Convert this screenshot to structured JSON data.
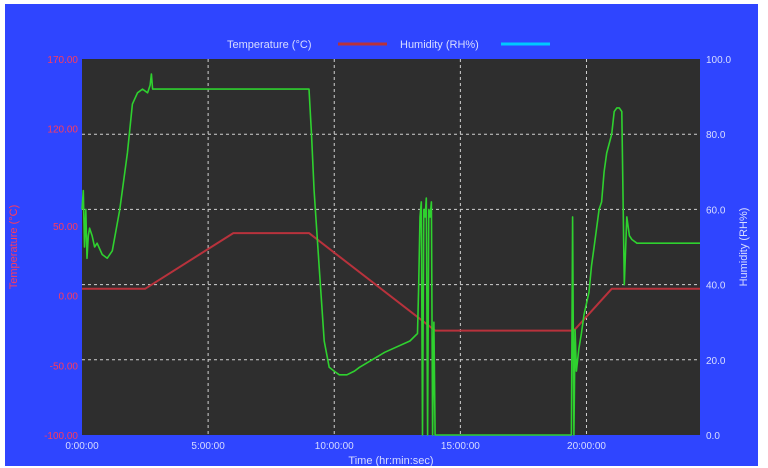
{
  "chart_data": {
    "type": "line",
    "title": "",
    "xlabel": "Time (hr:min:sec)",
    "ylabel_left": "Temperature (°C)",
    "ylabel_right": "Humidity (RH%)",
    "xlim": [
      0,
      24.5
    ],
    "ylim_left": [
      -100,
      170
    ],
    "ylim_right": [
      0,
      100
    ],
    "x_ticks": [
      0,
      5,
      10,
      15,
      20
    ],
    "x_tick_labels": [
      "0:00:00",
      "5:00:00",
      "10:00:00",
      "15:00:00",
      "20:00:00"
    ],
    "y_left_ticks": [
      -100,
      -50,
      0,
      50,
      120,
      170
    ],
    "y_left_tick_labels": [
      "-100.00",
      "-50.00",
      "0.00",
      "50.00",
      "120.00",
      "170.00"
    ],
    "y_right_ticks": [
      0,
      20,
      40,
      60,
      80,
      100
    ],
    "y_right_tick_labels": [
      "0.0",
      "20.0",
      "40.0",
      "60.0",
      "80.0",
      "100.0"
    ],
    "grid": true,
    "legend_position": "top-center",
    "colors": {
      "background": "#2f45ff",
      "plot_background": "#2e2e2e",
      "temperature": "#b8323c",
      "humidity": "#2fd12f",
      "legend_humidity_swatch": "#00c8ff",
      "left_axis_text": "#ff3b5c",
      "right_axis_text": "#d8ddff",
      "grid": "#d0d0d0"
    },
    "series": [
      {
        "name": "Temperature (°C)",
        "axis": "left",
        "x": [
          0,
          2.5,
          6,
          9,
          14,
          19.5,
          21,
          24.5
        ],
        "y": [
          5,
          5,
          45,
          45,
          -25,
          -25,
          5,
          5
        ]
      },
      {
        "name": "Humidity (RH%)",
        "axis": "right",
        "x": [
          0,
          0.05,
          0.1,
          0.15,
          0.2,
          0.25,
          0.3,
          0.4,
          0.5,
          0.6,
          0.8,
          1.0,
          1.2,
          1.5,
          1.8,
          2.0,
          2.2,
          2.4,
          2.6,
          2.7,
          2.75,
          2.8,
          2.9,
          3.0,
          3.5,
          4,
          5,
          6,
          7,
          8,
          9.0,
          9.1,
          9.2,
          9.4,
          9.6,
          9.8,
          10.0,
          10.2,
          10.5,
          10.8,
          11,
          12,
          13.0,
          13.3,
          13.35,
          13.4,
          13.45,
          13.5,
          13.55,
          13.6,
          13.65,
          13.7,
          13.75,
          13.8,
          13.85,
          13.9,
          13.95,
          14.0,
          14.05,
          14.1,
          14.15,
          14.2,
          14.25,
          14.3,
          19.0,
          19.4,
          19.45,
          19.5,
          19.55,
          19.6,
          19.7,
          19.8,
          19.9,
          20.0,
          20.1,
          20.2,
          20.3,
          20.4,
          20.5,
          20.6,
          20.7,
          20.8,
          21.0,
          21.1,
          21.2,
          21.3,
          21.4,
          21.5,
          21.6,
          21.7,
          21.8,
          22.0,
          22.5,
          23,
          24,
          24.5
        ],
        "y": [
          60,
          65,
          50,
          60,
          47,
          53,
          55,
          53,
          50,
          51,
          48,
          47,
          49,
          60,
          75,
          88,
          91,
          92,
          91,
          93,
          96,
          92,
          92,
          92,
          92,
          92,
          92,
          92,
          92,
          92,
          92,
          80,
          65,
          45,
          25,
          18,
          17,
          16,
          16,
          17,
          18,
          22,
          25,
          27,
          40,
          58,
          62,
          0,
          60,
          58,
          63,
          0,
          60,
          58,
          62,
          0,
          30,
          0,
          0,
          0,
          0,
          0,
          0,
          0,
          0,
          0,
          58,
          0,
          28,
          17,
          23,
          27,
          32,
          35,
          38,
          45,
          50,
          55,
          60,
          62,
          70,
          75,
          80,
          86,
          87,
          87,
          86,
          40,
          58,
          53,
          52,
          51,
          51,
          51,
          51,
          51
        ]
      }
    ]
  }
}
